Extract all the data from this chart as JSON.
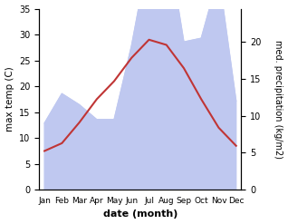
{
  "months": [
    "Jan",
    "Feb",
    "Mar",
    "Apr",
    "May",
    "Jun",
    "Jul",
    "Aug",
    "Sep",
    "Oct",
    "Nov",
    "Dec"
  ],
  "temp": [
    7.5,
    9.0,
    13.0,
    17.5,
    21.0,
    25.5,
    29.0,
    28.0,
    23.5,
    17.5,
    12.0,
    8.5
  ],
  "precip": [
    9.0,
    13.0,
    11.5,
    9.5,
    9.5,
    19.5,
    32.0,
    34.5,
    20.0,
    20.5,
    29.0,
    12.0
  ],
  "temp_color": "#c03535",
  "precip_fill_color": "#bfc8f0",
  "precip_edge_color": "#bfc8f0",
  "temp_ylim": [
    0,
    35
  ],
  "precip_ylim": [
    0,
    24.5
  ],
  "ylabel_left": "max temp (C)",
  "ylabel_right": "med. precipitation (kg/m2)",
  "xlabel": "date (month)",
  "yticks_left": [
    0,
    5,
    10,
    15,
    20,
    25,
    30,
    35
  ],
  "yticks_right": [
    0,
    5,
    10,
    15,
    20
  ],
  "bg_color": "#ffffff"
}
